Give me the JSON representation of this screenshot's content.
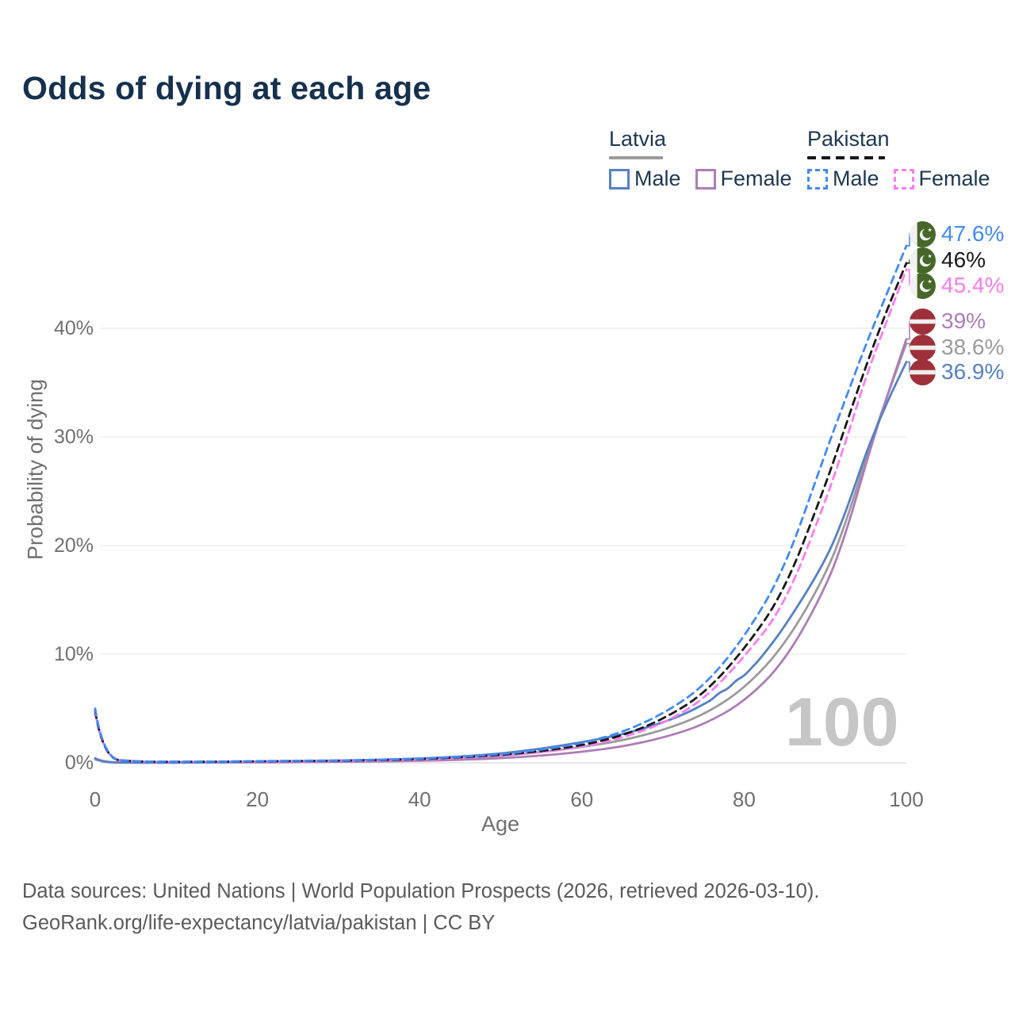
{
  "title": "Odds of dying at each age",
  "legend": {
    "groups": [
      {
        "name": "Latvia",
        "items": [
          {
            "label": "Male"
          },
          {
            "label": "Female"
          }
        ]
      },
      {
        "name": "Pakistan",
        "items": [
          {
            "label": "Male"
          },
          {
            "label": "Female"
          }
        ]
      }
    ]
  },
  "colors": {
    "title": "#16314e",
    "legend_text": "#1d3752",
    "axis_text": "#6f6f6f",
    "grid": "#eaeaea",
    "axis_line": "#d8d8d8",
    "watermark": "#c6c6c6",
    "footer_text": "#5a5a5a",
    "latvia_male": "#5581c4",
    "latvia_female": "#ad7cb6",
    "latvia_both": "#9b9b9b",
    "pakistan_male": "#4289f5",
    "pakistan_female": "#fa7df0",
    "pakistan_both": "#171717",
    "latvia_flag_red": "#9e3039",
    "latvia_flag_white": "#efeeee",
    "pakistan_flag_green": "#466728",
    "pakistan_flag_white": "#f1f1f1"
  },
  "chart_data": {
    "type": "line",
    "title": "Odds of dying at each age",
    "xlabel": "Age",
    "ylabel": "Probability of dying",
    "watermark": "100",
    "xlim": [
      0,
      100
    ],
    "ylim": [
      0,
      48
    ],
    "grid": "horizontal",
    "legend_position": "top-right",
    "x_ticks": [
      0,
      20,
      40,
      60,
      80,
      100
    ],
    "y_ticks": [
      {
        "value": 0,
        "label": "0%"
      },
      {
        "value": 10,
        "label": "10%"
      },
      {
        "value": 20,
        "label": "20%"
      },
      {
        "value": 30,
        "label": "30%"
      },
      {
        "value": 40,
        "label": "40%"
      }
    ],
    "series": [
      {
        "name": "Latvia",
        "group": "Latvia",
        "sex": "both",
        "style": "solid",
        "color": "#9b9b9b",
        "flag": "latvia",
        "end_label": "38.6%",
        "points": [
          [
            0,
            0.37
          ],
          [
            1,
            0.035
          ],
          [
            5,
            0.018
          ],
          [
            10,
            0.018
          ],
          [
            15,
            0.045
          ],
          [
            20,
            0.08
          ],
          [
            25,
            0.11
          ],
          [
            30,
            0.15
          ],
          [
            35,
            0.21
          ],
          [
            40,
            0.3
          ],
          [
            45,
            0.43
          ],
          [
            50,
            0.63
          ],
          [
            55,
            0.97
          ],
          [
            60,
            1.45
          ],
          [
            65,
            2.05
          ],
          [
            70,
            3.0
          ],
          [
            75,
            4.4
          ],
          [
            80,
            6.8
          ],
          [
            85,
            10.8
          ],
          [
            90,
            17.2
          ],
          [
            92.5,
            22.0
          ],
          [
            95,
            28.0
          ],
          [
            97.5,
            33.5
          ],
          [
            100,
            38.6
          ]
        ]
      },
      {
        "name": "Latvia Female",
        "group": "Latvia",
        "sex": "female",
        "style": "solid",
        "color": "#ad7cb6",
        "flag": "latvia",
        "end_label": "39%",
        "points": [
          [
            0,
            0.32
          ],
          [
            1,
            0.03
          ],
          [
            5,
            0.015
          ],
          [
            10,
            0.015
          ],
          [
            15,
            0.03
          ],
          [
            20,
            0.04
          ],
          [
            25,
            0.06
          ],
          [
            30,
            0.09
          ],
          [
            35,
            0.13
          ],
          [
            40,
            0.19
          ],
          [
            45,
            0.28
          ],
          [
            50,
            0.42
          ],
          [
            55,
            0.66
          ],
          [
            60,
            1.0
          ],
          [
            65,
            1.5
          ],
          [
            70,
            2.3
          ],
          [
            75,
            3.5
          ],
          [
            80,
            5.6
          ],
          [
            85,
            9.3
          ],
          [
            90,
            16.0
          ],
          [
            92.5,
            21.0
          ],
          [
            95,
            27.5
          ],
          [
            97.5,
            33.5
          ],
          [
            100,
            39.0
          ]
        ]
      },
      {
        "name": "Latvia Male",
        "group": "Latvia",
        "sex": "male",
        "style": "solid",
        "color": "#5581c4",
        "flag": "latvia",
        "end_label": "36.9%",
        "points": [
          [
            0,
            0.42
          ],
          [
            1,
            0.04
          ],
          [
            5,
            0.02
          ],
          [
            10,
            0.02
          ],
          [
            15,
            0.06
          ],
          [
            20,
            0.11
          ],
          [
            25,
            0.16
          ],
          [
            30,
            0.21
          ],
          [
            35,
            0.29
          ],
          [
            40,
            0.4
          ],
          [
            45,
            0.57
          ],
          [
            50,
            0.85
          ],
          [
            55,
            1.3
          ],
          [
            60,
            1.9
          ],
          [
            65,
            2.6
          ],
          [
            70,
            3.7
          ],
          [
            73,
            4.6
          ],
          [
            75,
            5.4
          ],
          [
            76,
            5.8
          ],
          [
            77,
            6.5
          ],
          [
            78,
            6.8
          ],
          [
            79,
            7.6
          ],
          [
            80,
            8.0
          ],
          [
            81,
            8.8
          ],
          [
            82,
            9.6
          ],
          [
            85,
            12.5
          ],
          [
            90,
            18.5
          ],
          [
            92.5,
            23.0
          ],
          [
            95,
            28.5
          ],
          [
            97.5,
            33.0
          ],
          [
            100,
            36.9
          ]
        ]
      },
      {
        "name": "Pakistan Female",
        "group": "Pakistan",
        "sex": "female",
        "style": "dashed",
        "color": "#fa7df0",
        "flag": "pakistan",
        "end_label": "45.4%",
        "points": [
          [
            0,
            4.6
          ],
          [
            1,
            0.36
          ],
          [
            5,
            0.1
          ],
          [
            10,
            0.08
          ],
          [
            15,
            0.1
          ],
          [
            20,
            0.12
          ],
          [
            25,
            0.15
          ],
          [
            30,
            0.18
          ],
          [
            35,
            0.22
          ],
          [
            40,
            0.3
          ],
          [
            45,
            0.44
          ],
          [
            50,
            0.65
          ],
          [
            55,
            0.98
          ],
          [
            60,
            1.45
          ],
          [
            65,
            2.3
          ],
          [
            70,
            3.6
          ],
          [
            75,
            5.8
          ],
          [
            80,
            9.7
          ],
          [
            85,
            14.5
          ],
          [
            90,
            24.0
          ],
          [
            92.5,
            29.5
          ],
          [
            95,
            35.5
          ],
          [
            97.5,
            40.5
          ],
          [
            100,
            45.4
          ]
        ]
      },
      {
        "name": "Pakistan",
        "group": "Pakistan",
        "sex": "both",
        "style": "dashed",
        "color": "#171717",
        "flag": "pakistan",
        "end_label": "46%",
        "points": [
          [
            0,
            4.8
          ],
          [
            1,
            0.38
          ],
          [
            5,
            0.11
          ],
          [
            10,
            0.09
          ],
          [
            15,
            0.11
          ],
          [
            20,
            0.14
          ],
          [
            25,
            0.17
          ],
          [
            30,
            0.2
          ],
          [
            35,
            0.25
          ],
          [
            40,
            0.34
          ],
          [
            45,
            0.5
          ],
          [
            50,
            0.72
          ],
          [
            55,
            1.08
          ],
          [
            60,
            1.6
          ],
          [
            65,
            2.5
          ],
          [
            70,
            4.0
          ],
          [
            75,
            6.3
          ],
          [
            80,
            10.4
          ],
          [
            85,
            15.8
          ],
          [
            90,
            25.5
          ],
          [
            92.5,
            31.0
          ],
          [
            95,
            36.5
          ],
          [
            97.5,
            41.5
          ],
          [
            100,
            46.0
          ]
        ]
      },
      {
        "name": "Pakistan Male",
        "group": "Pakistan",
        "sex": "male",
        "style": "dashed",
        "color": "#4289f5",
        "flag": "pakistan",
        "end_label": "47.6%",
        "points": [
          [
            0,
            5.0
          ],
          [
            1,
            0.4
          ],
          [
            5,
            0.12
          ],
          [
            10,
            0.1
          ],
          [
            15,
            0.12
          ],
          [
            20,
            0.16
          ],
          [
            25,
            0.19
          ],
          [
            30,
            0.22
          ],
          [
            35,
            0.28
          ],
          [
            40,
            0.38
          ],
          [
            45,
            0.55
          ],
          [
            50,
            0.8
          ],
          [
            55,
            1.2
          ],
          [
            60,
            1.8
          ],
          [
            65,
            2.8
          ],
          [
            70,
            4.5
          ],
          [
            75,
            7.0
          ],
          [
            80,
            11.5
          ],
          [
            85,
            17.8
          ],
          [
            90,
            28.5
          ],
          [
            92.5,
            33.5
          ],
          [
            95,
            38.5
          ],
          [
            97.5,
            43.0
          ],
          [
            100,
            47.6
          ]
        ]
      }
    ]
  },
  "footer": {
    "line1": "Data sources: United Nations | World Population Prospects (2026, retrieved 2026-03-10).",
    "line2": "GeoRank.org/life-expectancy/latvia/pakistan | CC BY"
  }
}
